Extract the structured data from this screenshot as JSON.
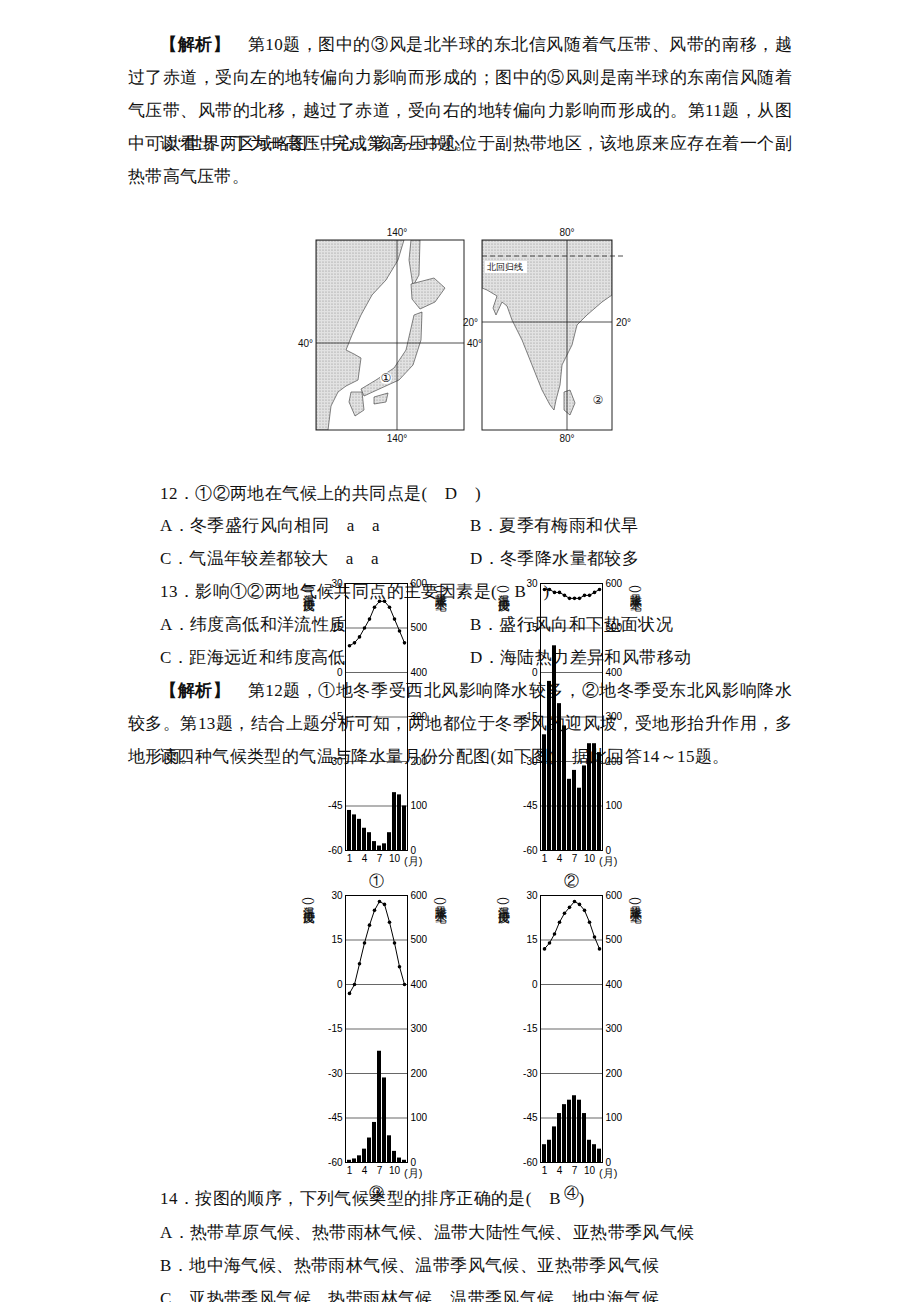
{
  "analysis_10_11": {
    "label": "【解析】",
    "text": "　第10题，图中的③风是北半球的东北信风随着气压带、风带的南移，越过了赤道，受向左的地转偏向力影响而形成的；图中的⑤风则是南半球的东南信风随着气压带、风带的北移，越过了赤道，受向右的地转偏向力影响而形成的。第11题，从图中可以看出，丁为一高压中心，该高压中心位于副热带地区，该地原来应存在着一个副热带高气压带。"
  },
  "intro_12_13": "读“世界两区域略图”，完成第12～13题。",
  "maps": {
    "left": {
      "top_lon": "140°",
      "left_lat": "40°",
      "right_lat": "40°",
      "marker": "①",
      "bottom_lon": "140°"
    },
    "right": {
      "top_lon": "80°",
      "tropic": "北回归线",
      "left_lat": "20°",
      "right_lat": "20°",
      "marker": "②",
      "bottom_lon": "80°"
    }
  },
  "questions_12_13": [
    {
      "stem": "12．①②两地在气候上的共同点是(　D　)",
      "options": [
        "A．冬季盛行风向相同　a　a",
        "B．夏季有梅雨和伏旱",
        "C．气温年较差都较大　a　a",
        "D．冬季降水量都较多"
      ]
    },
    {
      "stem": "13．影响①②两地气候共同点的主要因素是(　B　)",
      "options": [
        "A．纬度高低和洋流性质",
        "B．盛行风向和下垫面状况",
        "C．距海远近和纬度高低",
        "D．海陆热力差异和风带移动"
      ]
    }
  ],
  "analysis_12_13": {
    "label": "【解析】",
    "text": "　第12题，①地冬季受西北风影响降水较多，②地冬季受东北风影响降水较多。第13题，结合上题分析可知，两地都位于冬季风的迎风坡，受地形抬升作用，多地形雨。"
  },
  "intro_14_15": "读四种气候类型的气温与降水量月份分配图(如下图)，据此回答14～15题。",
  "chart_data": [
    {
      "type": "bar_line",
      "title": "①",
      "x": [
        1,
        2,
        3,
        4,
        5,
        6,
        7,
        8,
        9,
        10,
        11,
        12
      ],
      "xlabel": "(月)",
      "xticks": [
        1,
        4,
        7,
        10
      ],
      "ylabel": "气温(摄氏度)",
      "ylim": [
        -60,
        30
      ],
      "yticks": [
        -60,
        -45,
        -30,
        -15,
        0,
        15,
        30
      ],
      "y2label": "降水量(毫米)",
      "y2lim": [
        0,
        600
      ],
      "y2ticks": [
        0,
        100,
        200,
        300,
        400,
        500,
        600
      ],
      "grid": true,
      "series": [
        {
          "type": "line",
          "marker": "circle",
          "line_style": "solid",
          "color": "#000000",
          "values": [
            9,
            10,
            12,
            15,
            18,
            22,
            24,
            24,
            22,
            18,
            14,
            10
          ]
        },
        {
          "type": "bar",
          "axis": "y2",
          "color": "#000000",
          "values": [
            90,
            80,
            70,
            50,
            40,
            20,
            10,
            15,
            40,
            130,
            125,
            100
          ]
        }
      ]
    },
    {
      "type": "bar_line",
      "title": "②",
      "x": [
        1,
        2,
        3,
        4,
        5,
        6,
        7,
        8,
        9,
        10,
        11,
        12
      ],
      "xlabel": "(月)",
      "xticks": [
        1,
        4,
        7,
        10
      ],
      "ylabel": "气温(摄氏度)",
      "ylim": [
        -60,
        30
      ],
      "yticks": [
        -60,
        -45,
        -30,
        -15,
        0,
        15,
        30
      ],
      "y2label": "降水量(毫米)",
      "y2lim": [
        0,
        600
      ],
      "y2ticks": [
        0,
        100,
        200,
        300,
        400,
        500,
        600
      ],
      "grid": true,
      "series": [
        {
          "type": "line",
          "marker": "circle",
          "line_style": "solid",
          "color": "#000000",
          "values": [
            28,
            28,
            27,
            27,
            26,
            25,
            25,
            25,
            26,
            26,
            27,
            28
          ]
        },
        {
          "type": "bar",
          "axis": "y2",
          "color": "#000000",
          "values": [
            260,
            380,
            460,
            330,
            280,
            160,
            180,
            140,
            190,
            240,
            240,
            220
          ]
        }
      ]
    },
    {
      "type": "bar_line",
      "title": "③",
      "x": [
        1,
        2,
        3,
        4,
        5,
        6,
        7,
        8,
        9,
        10,
        11,
        12
      ],
      "xlabel": "(月)",
      "xticks": [
        1,
        4,
        7,
        10
      ],
      "ylabel": "气温(摄氏度)",
      "ylim": [
        -60,
        30
      ],
      "yticks": [
        -60,
        -45,
        -30,
        -15,
        0,
        15,
        30
      ],
      "y2label": "降水量(毫米)",
      "y2lim": [
        0,
        600
      ],
      "y2ticks": [
        0,
        100,
        200,
        300,
        400,
        500,
        600
      ],
      "grid": true,
      "series": [
        {
          "type": "line",
          "marker": "circle",
          "line_style": "solid",
          "color": "#000000",
          "values": [
            -3,
            0,
            7,
            14,
            20,
            25,
            28,
            27,
            21,
            14,
            6,
            0
          ]
        },
        {
          "type": "bar",
          "axis": "y2",
          "color": "#000000",
          "values": [
            5,
            8,
            15,
            30,
            55,
            90,
            250,
            190,
            60,
            25,
            10,
            5
          ]
        }
      ]
    },
    {
      "type": "bar_line",
      "title": "④",
      "x": [
        1,
        2,
        3,
        4,
        5,
        6,
        7,
        8,
        9,
        10,
        11,
        12
      ],
      "xlabel": "(月)",
      "xticks": [
        1,
        4,
        7,
        10
      ],
      "ylabel": "气温(摄氏度)",
      "ylim": [
        -60,
        30
      ],
      "yticks": [
        -60,
        -45,
        -30,
        -15,
        0,
        15,
        30
      ],
      "y2label": "降水量(毫米)",
      "y2lim": [
        0,
        600
      ],
      "y2ticks": [
        0,
        100,
        200,
        300,
        400,
        500,
        600
      ],
      "grid": true,
      "series": [
        {
          "type": "line",
          "marker": "circle",
          "line_style": "solid",
          "color": "#000000",
          "values": [
            12,
            14,
            17,
            21,
            24,
            26,
            28,
            27,
            25,
            21,
            16,
            12
          ]
        },
        {
          "type": "bar",
          "axis": "y2",
          "color": "#000000",
          "values": [
            40,
            50,
            80,
            110,
            130,
            140,
            150,
            140,
            110,
            50,
            40,
            30
          ]
        }
      ]
    }
  ],
  "question_14": {
    "stem": "14．按图的顺序，下列气候类型的排序正确的是(　B　)",
    "options": [
      "A．热带草原气候、热带雨林气候、温带大陆性气候、亚热带季风气候",
      "B．地中海气候、热带雨林气候、温带季风气候、亚热带季风气候",
      "C．亚热带季风气候、热带雨林气候、温带季风气候、地中海气候"
    ]
  }
}
